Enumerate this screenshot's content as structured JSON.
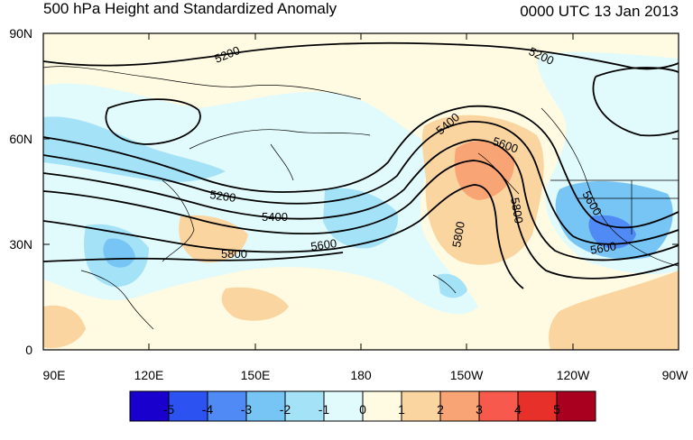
{
  "header": {
    "title": "500 hPa Height and Standardized Anomaly",
    "date": "0000 UTC 13 Jan 2013"
  },
  "axes": {
    "lat_labels": [
      "90N",
      "60N",
      "30N",
      "0"
    ],
    "lon_labels": [
      "90E",
      "120E",
      "150E",
      "180",
      "150W",
      "120W",
      "90W"
    ]
  },
  "contour_labels": [
    "5200",
    "5200",
    "5200",
    "5400",
    "5400",
    "5600",
    "5600",
    "5600",
    "5800",
    "5800",
    "5800",
    "5600"
  ],
  "colorbar": {
    "labels": [
      "-5",
      "-4",
      "-3",
      "-2",
      "-1",
      "0",
      "1",
      "2",
      "3",
      "4",
      "5"
    ],
    "colors": [
      "#1a00cc",
      "#2d52f2",
      "#4f8af5",
      "#76c5f5",
      "#a4e2f8",
      "#e1fafc",
      "#fffbe3",
      "#fbd5a0",
      "#f9a475",
      "#f75a4c",
      "#e8302a",
      "#a8001e"
    ]
  },
  "chart_data": {
    "type": "map",
    "title": "500 hPa Height and Standardized Anomaly",
    "valid_time": "0000 UTC 13 Jan 2013",
    "domain": {
      "lon_range": [
        "90E",
        "90W"
      ],
      "lat_range": [
        "0",
        "90N"
      ]
    },
    "contour_levels": [
      5200,
      5400,
      5600,
      5800
    ],
    "anomaly_scale": [
      -5,
      -4,
      -3,
      -2,
      -1,
      0,
      1,
      2,
      3,
      4,
      5
    ]
  }
}
